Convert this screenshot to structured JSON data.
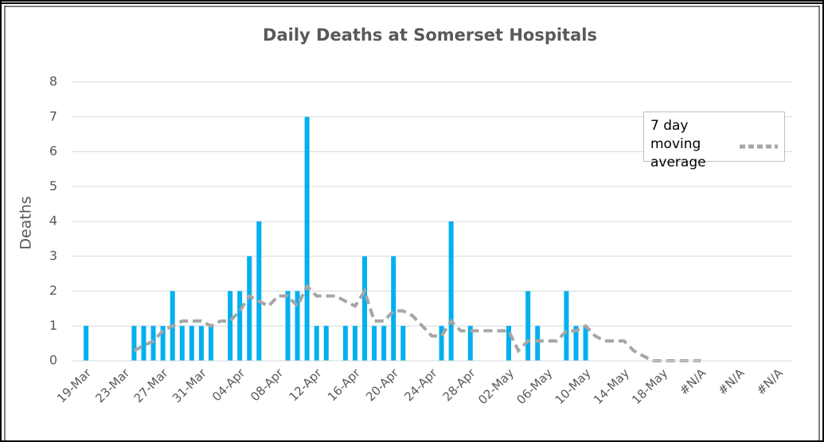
{
  "chart_data": {
    "type": "bar",
    "title": "Daily Deaths at Somerset Hospitals",
    "y_label": "Deaths",
    "categories": [
      null,
      "19-Mar",
      null,
      null,
      null,
      "23-Mar",
      null,
      null,
      null,
      "27-Mar",
      null,
      null,
      null,
      "31-Mar",
      null,
      null,
      null,
      "04-Apr",
      null,
      null,
      null,
      "08-Apr",
      null,
      null,
      null,
      "12-Apr",
      null,
      null,
      null,
      "16-Apr",
      null,
      null,
      null,
      "20-Apr",
      null,
      null,
      null,
      "24-Apr",
      null,
      null,
      null,
      "28-Apr",
      null,
      null,
      null,
      "02-May",
      null,
      null,
      null,
      "06-May",
      null,
      null,
      null,
      "10-May",
      null,
      null,
      null,
      "14-May",
      null,
      null,
      null,
      "18-May",
      null,
      null,
      null,
      "#N/A",
      null,
      null,
      null,
      "#N/A",
      null,
      null,
      null,
      "#N/A",
      null
    ],
    "series": [
      {
        "color": "#00b0f0",
        "values": [
          0,
          1,
          0,
          0,
          0,
          0,
          1,
          1,
          1,
          1,
          2,
          1,
          1,
          1,
          1,
          0,
          2,
          2,
          3,
          4,
          0,
          0,
          2,
          2,
          7,
          1,
          1,
          0,
          1,
          1,
          3,
          1,
          1,
          3,
          1,
          0,
          0,
          0,
          1,
          4,
          0,
          1,
          0,
          0,
          0,
          1,
          0,
          2,
          1,
          0,
          0,
          2,
          1,
          1,
          0,
          0,
          0,
          0,
          0,
          0,
          0,
          0,
          0,
          null,
          null,
          null,
          null,
          null,
          null,
          null,
          null,
          null,
          null,
          null,
          null
        ]
      },
      {
        "name": "7 day moving average",
        "type": "line",
        "color": "#a6a6a6",
        "values": [
          null,
          null,
          null,
          null,
          null,
          null,
          0.29,
          0.43,
          0.57,
          0.86,
          1.0,
          1.14,
          1.14,
          1.14,
          1.0,
          1.14,
          1.14,
          1.43,
          1.86,
          1.71,
          1.57,
          1.86,
          1.86,
          1.57,
          2.14,
          1.86,
          1.86,
          1.86,
          1.71,
          1.57,
          2.0,
          1.14,
          1.14,
          1.43,
          1.43,
          1.29,
          1.0,
          0.71,
          0.71,
          1.14,
          0.86,
          0.86,
          0.86,
          0.86,
          0.86,
          0.86,
          0.29,
          0.57,
          0.57,
          0.57,
          0.57,
          0.86,
          0.86,
          1.0,
          0.71,
          0.57,
          0.57,
          0.57,
          0.29,
          0.14,
          0,
          0,
          0,
          0,
          0,
          0,
          null,
          null,
          null,
          null,
          null,
          null,
          null,
          null,
          null
        ]
      }
    ],
    "ylim": [
      0,
      8
    ],
    "yticks": [
      0,
      1,
      2,
      3,
      4,
      5,
      6,
      7,
      8
    ],
    "grid": true,
    "legend": "upper right"
  }
}
